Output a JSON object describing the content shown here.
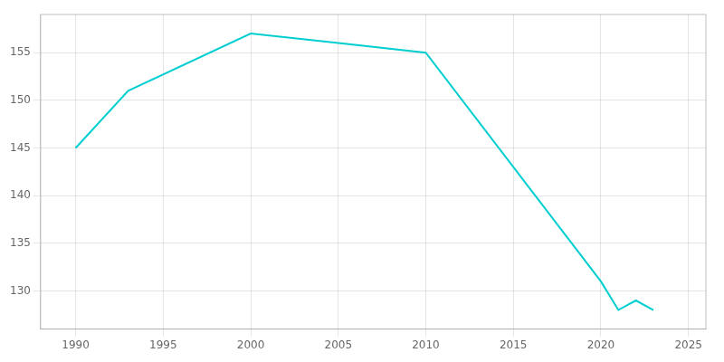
{
  "chart_data": {
    "type": "line",
    "x": [
      1990,
      1993,
      2000,
      2005,
      2010,
      2020,
      2021,
      2022,
      2023
    ],
    "values": [
      145,
      151,
      157,
      156,
      155,
      131,
      128,
      129,
      128
    ],
    "color": "#00CED1",
    "xlim": [
      1988,
      2026
    ],
    "ylim": [
      126,
      159
    ],
    "xticks": [
      1990,
      1995,
      2000,
      2005,
      2010,
      2015,
      2020,
      2025
    ],
    "yticks": [
      130,
      135,
      140,
      145,
      150,
      155
    ],
    "grid": true
  }
}
